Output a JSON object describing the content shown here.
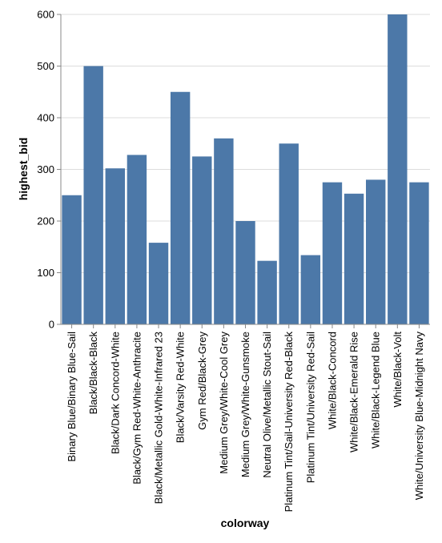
{
  "chart_data": {
    "type": "bar",
    "xlabel": "colorway",
    "ylabel": "highest_bid",
    "ylim": [
      0,
      600
    ],
    "yticks": [
      0,
      100,
      200,
      300,
      400,
      500,
      600
    ],
    "grid": true,
    "bar_color": "#4c78a8",
    "categories": [
      "Binary Blue/Binary Blue-Sail",
      "Black/Black-Black",
      "Black/Dark Concord-White",
      "Black/Gym Red-White-Anthracite",
      "Black/Metallic Gold-White-Infrared 23",
      "Black/Varsity Red-White",
      "Gym Red/Black-Grey",
      "Medium Grey/White-Cool Grey",
      "Medium Grey/White-Gunsmoke",
      "Neutral Olive/Metallic Stout-Sail",
      "Platinum Tint/Sail-University Red-Black",
      "Platinum Tint/University Red-Sail",
      "White/Black-Concord",
      "White/Black-Emerald Rise",
      "White/Black-Legend Blue",
      "White/Black-Volt",
      "White/University Blue-Midnight Navy"
    ],
    "values": [
      250,
      500,
      302,
      328,
      158,
      450,
      325,
      360,
      200,
      123,
      350,
      134,
      275,
      253,
      280,
      600,
      275
    ]
  }
}
